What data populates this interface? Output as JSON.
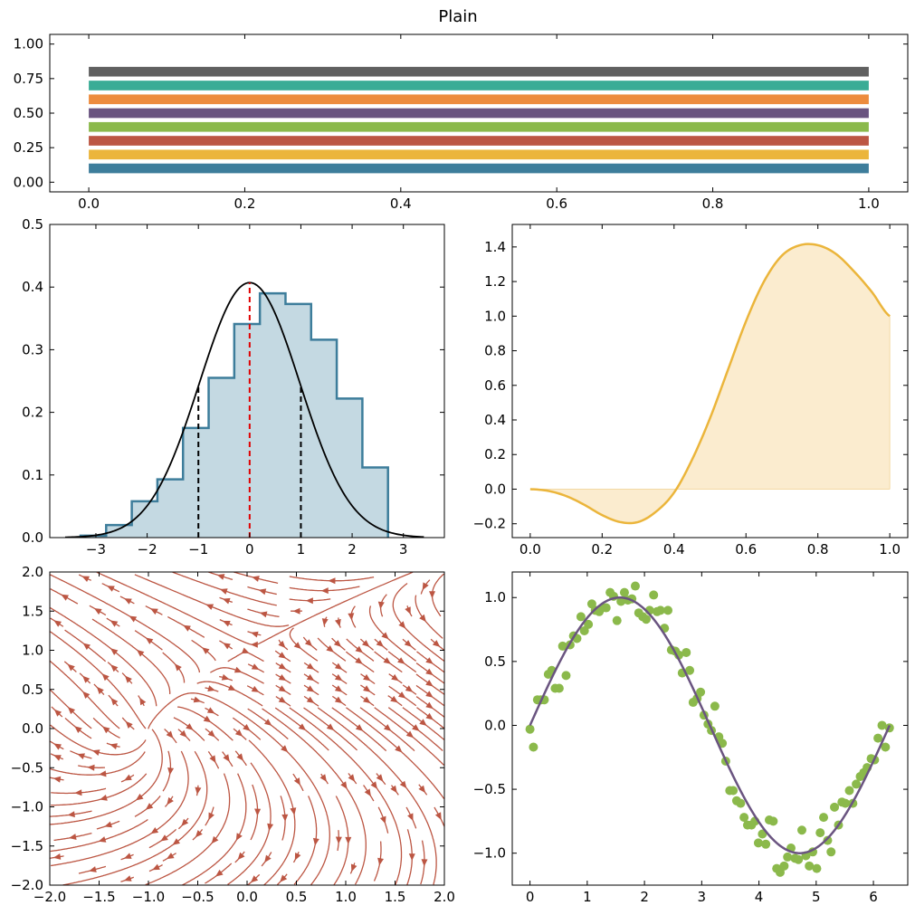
{
  "figure": {
    "title": "Plain"
  },
  "colors": {
    "palette": [
      "#3d7d9b",
      "#ebb53b",
      "#bc5643",
      "#8bb94b",
      "#6a5480",
      "#ed8c3e",
      "#3aac96",
      "#606060"
    ],
    "hist_fill": "#c4d9e2",
    "hist_edge": "#3d7d9b",
    "pdf_line": "#000000",
    "mean_line": "#e00000",
    "sigma_line": "#000000",
    "area_line": "#ebb53b",
    "area_fill": "#fbeccf",
    "stream": "#bc5643",
    "scatter": "#8bb94b",
    "fit_line": "#6a5480"
  },
  "chart_data": [
    {
      "id": "bars",
      "type": "bar",
      "orientation": "horizontal",
      "categories": [
        "0.1",
        "0.2",
        "0.3",
        "0.4",
        "0.5",
        "0.6",
        "0.7",
        "0.8"
      ],
      "y": [
        0.1,
        0.2,
        0.3,
        0.4,
        0.5,
        0.6,
        0.7,
        0.8
      ],
      "x_from": 0.0,
      "x_to": 1.0,
      "band_height": 0.07,
      "xlim": [
        -0.05,
        1.05
      ],
      "ylim": [
        -0.07,
        1.07
      ],
      "xticks": [
        0.0,
        0.2,
        0.4,
        0.6,
        0.8,
        1.0
      ],
      "xtick_labels": [
        "0.0",
        "0.2",
        "0.4",
        "0.6",
        "0.8",
        "1.0"
      ],
      "yticks": [
        0.0,
        0.25,
        0.5,
        0.75,
        1.0
      ],
      "ytick_labels": [
        "0.00",
        "0.25",
        "0.50",
        "0.75",
        "1.00"
      ],
      "grid": false
    },
    {
      "id": "hist",
      "type": "histogram",
      "bin_edges": [
        -3.3,
        -2.8,
        -2.3,
        -1.8,
        -1.3,
        -0.8,
        -0.3,
        0.2,
        0.7,
        1.2,
        1.7,
        2.2,
        2.7
      ],
      "densities": [
        0.003,
        0.02,
        0.058,
        0.093,
        0.175,
        0.255,
        0.341,
        0.39,
        0.373,
        0.316,
        0.222,
        0.112
      ],
      "tail": {
        "left_edge": -3.3,
        "left_value": 0.003,
        "right_edge": 2.7,
        "right_value": 0.02
      },
      "pdf": {
        "mean": 0.0,
        "sigma": 0.98,
        "x_range": [
          -3.6,
          3.4
        ]
      },
      "mean_line": 0.0,
      "sigma_lines": [
        -1.0,
        1.0
      ],
      "xlim": [
        -3.9,
        3.8
      ],
      "ylim": [
        0.0,
        0.5
      ],
      "xticks": [
        -3,
        -2,
        -1,
        0,
        1,
        2,
        3
      ],
      "xtick_labels": [
        "−3",
        "−2",
        "−1",
        "0",
        "1",
        "2",
        "3"
      ],
      "yticks": [
        0.0,
        0.1,
        0.2,
        0.3,
        0.4,
        0.5
      ],
      "ytick_labels": [
        "0.0",
        "0.1",
        "0.2",
        "0.3",
        "0.4",
        "0.5"
      ],
      "grid": false
    },
    {
      "id": "area",
      "type": "area",
      "x": [
        0.0,
        0.05,
        0.1,
        0.15,
        0.2,
        0.25,
        0.3,
        0.35,
        0.4,
        0.45,
        0.5,
        0.55,
        0.6,
        0.65,
        0.7,
        0.75,
        0.8,
        0.85,
        0.9,
        0.95,
        1.0
      ],
      "y": [
        0.0,
        -0.01,
        -0.04,
        -0.09,
        -0.15,
        -0.19,
        -0.19,
        -0.13,
        -0.02,
        0.17,
        0.41,
        0.69,
        0.97,
        1.2,
        1.35,
        1.41,
        1.41,
        1.36,
        1.26,
        1.14,
        1.0
      ],
      "baseline": 0.0,
      "xlim": [
        -0.05,
        1.05
      ],
      "ylim": [
        -0.28,
        1.53
      ],
      "xticks": [
        0.0,
        0.2,
        0.4,
        0.6,
        0.8,
        1.0
      ],
      "xtick_labels": [
        "0.0",
        "0.2",
        "0.4",
        "0.6",
        "0.8",
        "1.0"
      ],
      "yticks": [
        -0.2,
        0.0,
        0.2,
        0.4,
        0.6,
        0.8,
        1.0,
        1.2,
        1.4
      ],
      "ytick_labels": [
        "−0.2",
        "0.0",
        "0.2",
        "0.4",
        "0.6",
        "0.8",
        "1.0",
        "1.2",
        "1.4"
      ],
      "grid": false
    },
    {
      "id": "stream",
      "type": "streamplot",
      "field": {
        "u": "1 + x - y^2",
        "v": "-1 - x + y"
      },
      "xlim": [
        -2.0,
        2.0
      ],
      "ylim": [
        -2.0,
        2.0
      ],
      "xticks": [
        -2.0,
        -1.5,
        -1.0,
        -0.5,
        0.0,
        0.5,
        1.0,
        1.5,
        2.0
      ],
      "xtick_labels": [
        "−2.0",
        "−1.5",
        "−1.0",
        "−0.5",
        "0.0",
        "0.5",
        "1.0",
        "1.5",
        "2.0"
      ],
      "yticks": [
        -2.0,
        -1.5,
        -1.0,
        -0.5,
        0.0,
        0.5,
        1.0,
        1.5,
        2.0
      ],
      "ytick_labels": [
        "−2.0",
        "−1.5",
        "−1.0",
        "−0.5",
        "0.0",
        "0.5",
        "1.0",
        "1.5",
        "2.0"
      ],
      "grid": false
    },
    {
      "id": "scatter",
      "type": "scatter",
      "points": [
        [
          0.0,
          -0.03
        ],
        [
          0.06,
          -0.17
        ],
        [
          0.13,
          0.2
        ],
        [
          0.19,
          0.2
        ],
        [
          0.25,
          0.2
        ],
        [
          0.32,
          0.4
        ],
        [
          0.38,
          0.43
        ],
        [
          0.44,
          0.29
        ],
        [
          0.51,
          0.29
        ],
        [
          0.57,
          0.62
        ],
        [
          0.63,
          0.39
        ],
        [
          0.7,
          0.63
        ],
        [
          0.76,
          0.7
        ],
        [
          0.82,
          0.68
        ],
        [
          0.89,
          0.85
        ],
        [
          0.95,
          0.74
        ],
        [
          1.02,
          0.79
        ],
        [
          1.08,
          0.95
        ],
        [
          1.14,
          0.9
        ],
        [
          1.21,
          0.89
        ],
        [
          1.27,
          0.92
        ],
        [
          1.33,
          0.92
        ],
        [
          1.4,
          1.04
        ],
        [
          1.46,
          1.01
        ],
        [
          1.52,
          0.82
        ],
        [
          1.59,
          0.97
        ],
        [
          1.65,
          1.04
        ],
        [
          1.71,
          0.98
        ],
        [
          1.78,
          0.99
        ],
        [
          1.84,
          1.09
        ],
        [
          1.9,
          0.88
        ],
        [
          1.97,
          0.85
        ],
        [
          2.03,
          0.83
        ],
        [
          2.09,
          0.9
        ],
        [
          2.16,
          1.02
        ],
        [
          2.22,
          0.89
        ],
        [
          2.28,
          0.9
        ],
        [
          2.35,
          0.76
        ],
        [
          2.41,
          0.9
        ],
        [
          2.47,
          0.59
        ],
        [
          2.54,
          0.58
        ],
        [
          2.6,
          0.55
        ],
        [
          2.66,
          0.41
        ],
        [
          2.73,
          0.57
        ],
        [
          2.79,
          0.43
        ],
        [
          2.85,
          0.18
        ],
        [
          2.92,
          0.21
        ],
        [
          2.98,
          0.26
        ],
        [
          3.04,
          0.08
        ],
        [
          3.11,
          0.01
        ],
        [
          3.17,
          -0.04
        ],
        [
          3.23,
          0.15
        ],
        [
          3.3,
          -0.09
        ],
        [
          3.36,
          -0.14
        ],
        [
          3.42,
          -0.28
        ],
        [
          3.49,
          -0.51
        ],
        [
          3.55,
          -0.51
        ],
        [
          3.61,
          -0.59
        ],
        [
          3.68,
          -0.61
        ],
        [
          3.74,
          -0.72
        ],
        [
          3.8,
          -0.78
        ],
        [
          3.87,
          -0.78
        ],
        [
          3.93,
          -0.75
        ],
        [
          3.99,
          -0.92
        ],
        [
          4.06,
          -0.85
        ],
        [
          4.12,
          -0.93
        ],
        [
          4.18,
          -0.74
        ],
        [
          4.25,
          -0.75
        ],
        [
          4.31,
          -1.12
        ],
        [
          4.37,
          -1.15
        ],
        [
          4.44,
          -1.1
        ],
        [
          4.5,
          -1.03
        ],
        [
          4.56,
          -0.96
        ],
        [
          4.63,
          -1.04
        ],
        [
          4.69,
          -1.05
        ],
        [
          4.75,
          -0.82
        ],
        [
          4.82,
          -1.02
        ],
        [
          4.88,
          -1.1
        ],
        [
          4.94,
          -0.99
        ],
        [
          5.01,
          -1.12
        ],
        [
          5.07,
          -0.84
        ],
        [
          5.13,
          -0.72
        ],
        [
          5.2,
          -0.9
        ],
        [
          5.26,
          -0.99
        ],
        [
          5.32,
          -0.64
        ],
        [
          5.39,
          -0.78
        ],
        [
          5.45,
          -0.6
        ],
        [
          5.51,
          -0.61
        ],
        [
          5.58,
          -0.51
        ],
        [
          5.64,
          -0.61
        ],
        [
          5.7,
          -0.46
        ],
        [
          5.77,
          -0.4
        ],
        [
          5.83,
          -0.37
        ],
        [
          5.89,
          -0.33
        ],
        [
          5.96,
          -0.26
        ],
        [
          6.02,
          -0.27
        ],
        [
          6.08,
          -0.1
        ],
        [
          6.15,
          0.0
        ],
        [
          6.21,
          -0.17
        ],
        [
          6.28,
          -0.02
        ]
      ],
      "fit": {
        "function": "sin",
        "x_range": [
          0.0,
          6.283
        ]
      },
      "xlim": [
        -0.31,
        6.6
      ],
      "ylim": [
        -1.25,
        1.2
      ],
      "xticks": [
        0,
        1,
        2,
        3,
        4,
        5,
        6
      ],
      "xtick_labels": [
        "0",
        "1",
        "2",
        "3",
        "4",
        "5",
        "6"
      ],
      "yticks": [
        -1.0,
        -0.5,
        0.0,
        0.5,
        1.0
      ],
      "ytick_labels": [
        "−1.0",
        "−0.5",
        "0.0",
        "0.5",
        "1.0"
      ],
      "grid": false
    }
  ]
}
